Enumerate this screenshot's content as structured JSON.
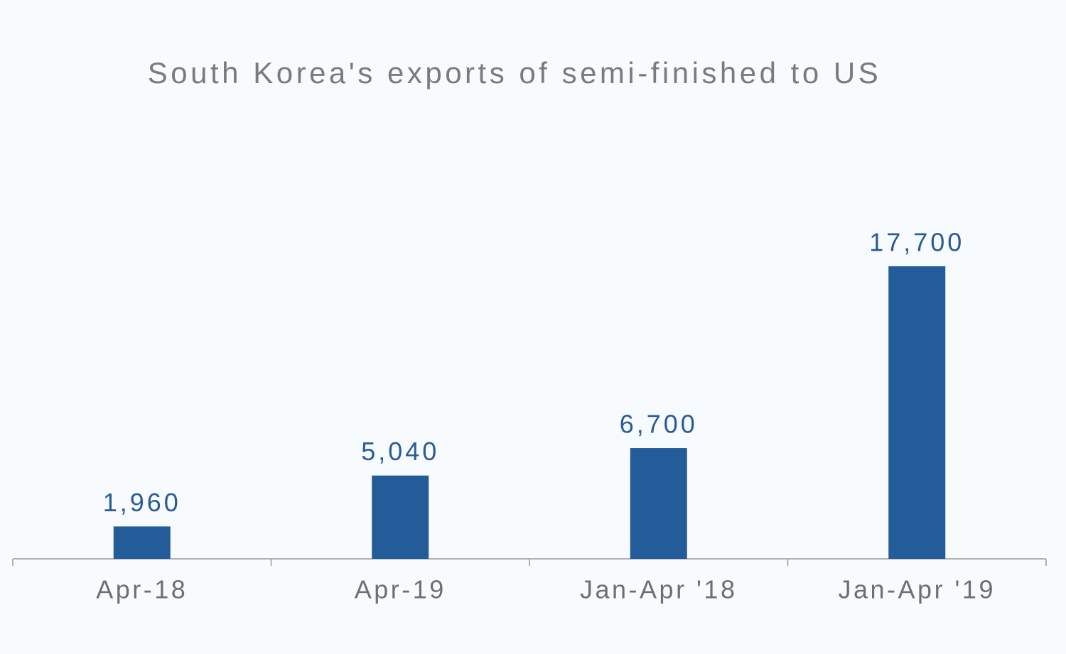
{
  "chart_data": {
    "type": "bar",
    "title": "South Korea's exports of semi-finished to US",
    "categories": [
      "Apr-18",
      "Apr-19",
      "Jan-Apr '18",
      "Jan-Apr '19"
    ],
    "values": [
      1960,
      5040,
      6700,
      17700
    ],
    "value_labels": [
      "1,960",
      "5,040",
      "6,700",
      "17,700"
    ],
    "color": "#245b99"
  }
}
